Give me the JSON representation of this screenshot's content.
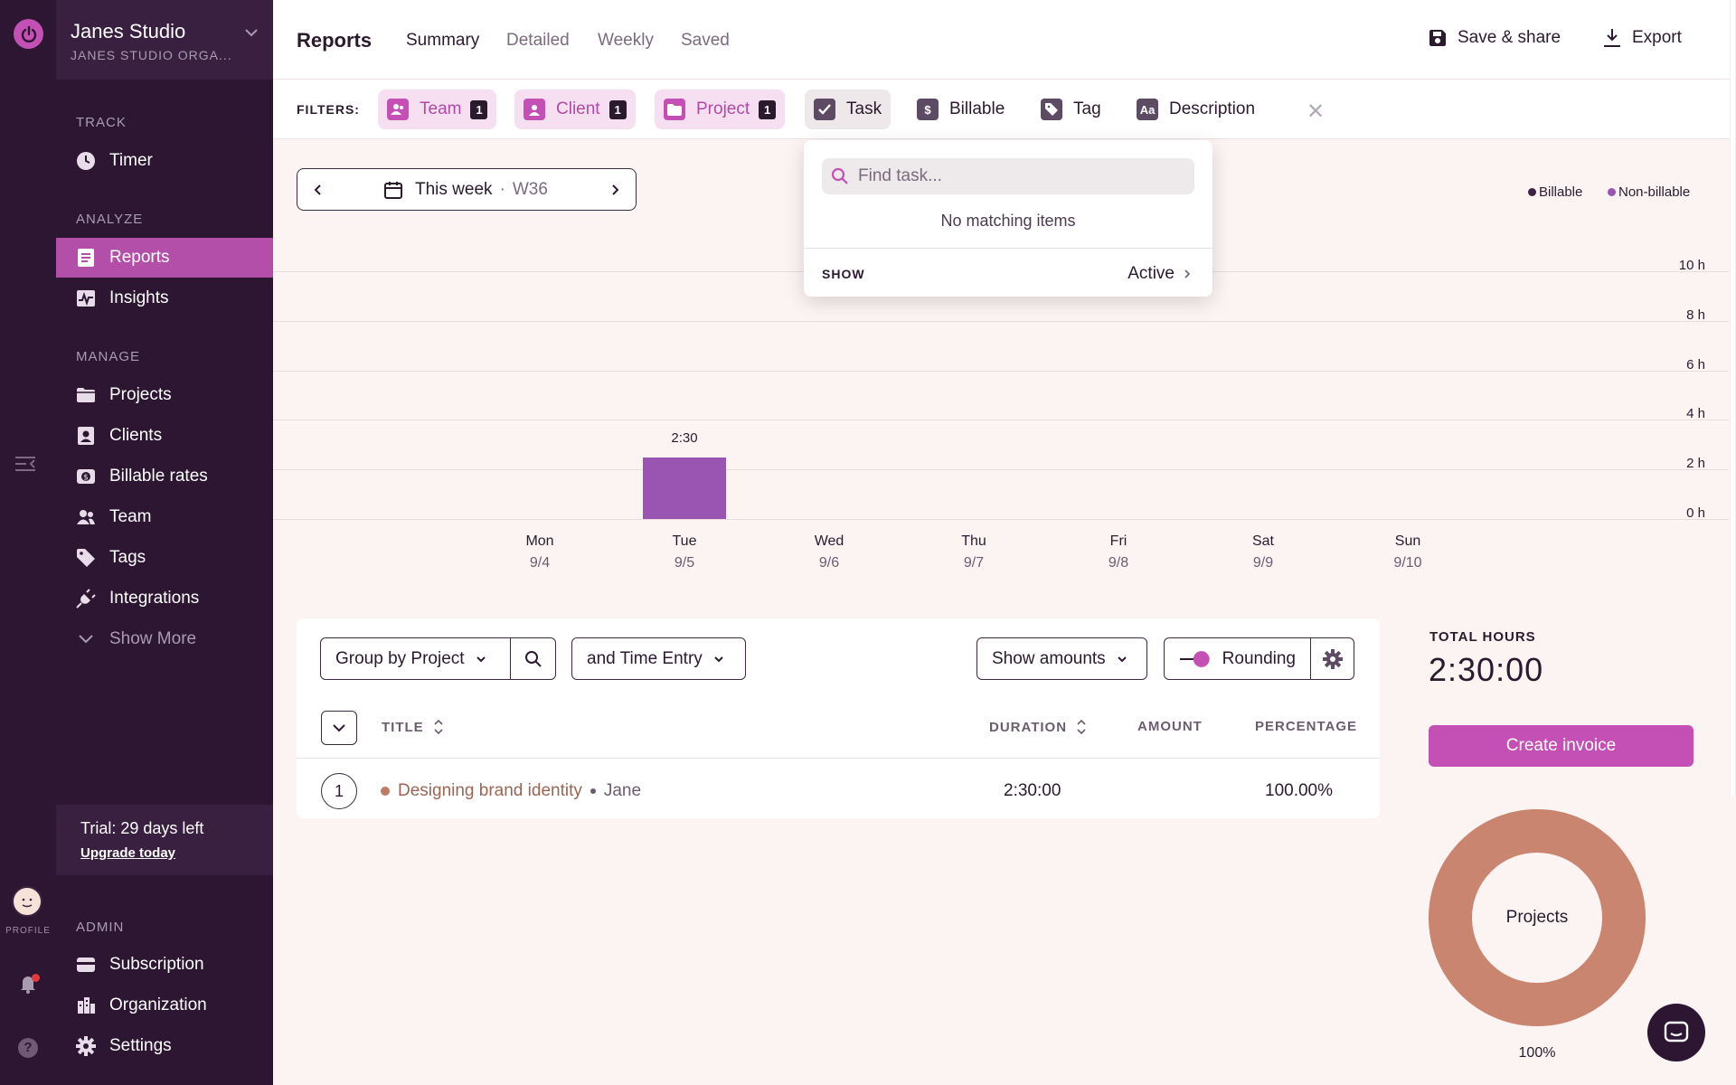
{
  "app": {
    "workspace_name": "Janes Studio",
    "workspace_org": "JANES STUDIO ORGA...",
    "profile_label": "PROFILE"
  },
  "sidebar": {
    "track_label": "TRACK",
    "analyze_label": "ANALYZE",
    "manage_label": "MANAGE",
    "admin_label": "ADMIN",
    "items": {
      "timer": "Timer",
      "reports": "Reports",
      "insights": "Insights",
      "projects": "Projects",
      "clients": "Clients",
      "billable_rates": "Billable rates",
      "team": "Team",
      "tags": "Tags",
      "integrations": "Integrations",
      "show_more": "Show More",
      "subscription": "Subscription",
      "organization": "Organization",
      "settings": "Settings"
    },
    "trial": {
      "text": "Trial: 29 days left",
      "link": "Upgrade today"
    }
  },
  "header": {
    "title": "Reports",
    "tabs": [
      "Summary",
      "Detailed",
      "Weekly",
      "Saved"
    ],
    "active_tab": "Summary",
    "save_share": "Save & share",
    "export": "Export"
  },
  "filters": {
    "label": "FILTERS:",
    "chips": [
      {
        "label": "Team",
        "count": "1",
        "icon": "user-group-icon"
      },
      {
        "label": "Client",
        "count": "1",
        "icon": "client-icon"
      },
      {
        "label": "Project",
        "count": "1",
        "icon": "folder-icon"
      },
      {
        "label": "Task",
        "icon": "checkbox-icon"
      },
      {
        "label": "Billable",
        "icon": "dollar-icon"
      },
      {
        "label": "Tag",
        "icon": "tag-icon"
      },
      {
        "label": "Description",
        "icon": "text-icon"
      }
    ]
  },
  "task_dropdown": {
    "search_placeholder": "Find task...",
    "empty_text": "No matching items",
    "show_label": "SHOW",
    "show_value": "Active"
  },
  "week_selector": {
    "label": "This week",
    "separator": "·",
    "week": "W36"
  },
  "legend": {
    "billable": "Billable",
    "non_billable": "Non-billable",
    "billable_color": "#3d2243",
    "non_billable_color": "#9955b1"
  },
  "chart_data": {
    "type": "bar",
    "categories": [
      "Mon",
      "Tue",
      "Wed",
      "Thu",
      "Fri",
      "Sat",
      "Sun"
    ],
    "dates": [
      "9/4",
      "9/5",
      "9/6",
      "9/7",
      "9/8",
      "9/9",
      "9/10"
    ],
    "series": [
      {
        "name": "Non-billable",
        "values": [
          0,
          2.5,
          0,
          0,
          0,
          0,
          0
        ]
      }
    ],
    "bar_labels": [
      "",
      "2:30",
      "",
      "",
      "",
      "",
      ""
    ],
    "yticks": [
      "10 h",
      "8 h",
      "6 h",
      "4 h",
      "2 h",
      "0 h"
    ],
    "ylim": [
      0,
      10
    ],
    "grid": true,
    "legend": "top-right"
  },
  "report": {
    "group_by": "Group by Project",
    "sub_group": "and Time Entry",
    "show_amounts": "Show amounts",
    "rounding": "Rounding",
    "columns": {
      "title": "TITLE",
      "duration": "DURATION",
      "amount": "AMOUNT",
      "percentage": "PERCENTAGE"
    },
    "rows": [
      {
        "num": "1",
        "project": "Designing brand identity",
        "client": "Jane",
        "duration": "2:30:00",
        "percentage": "100.00%"
      }
    ]
  },
  "summary": {
    "total_label": "TOTAL HOURS",
    "total_value": "2:30:00",
    "invoice_button": "Create invoice",
    "donut_label": "Projects",
    "donut_percent": "100%",
    "donut_color": "#c98570"
  }
}
